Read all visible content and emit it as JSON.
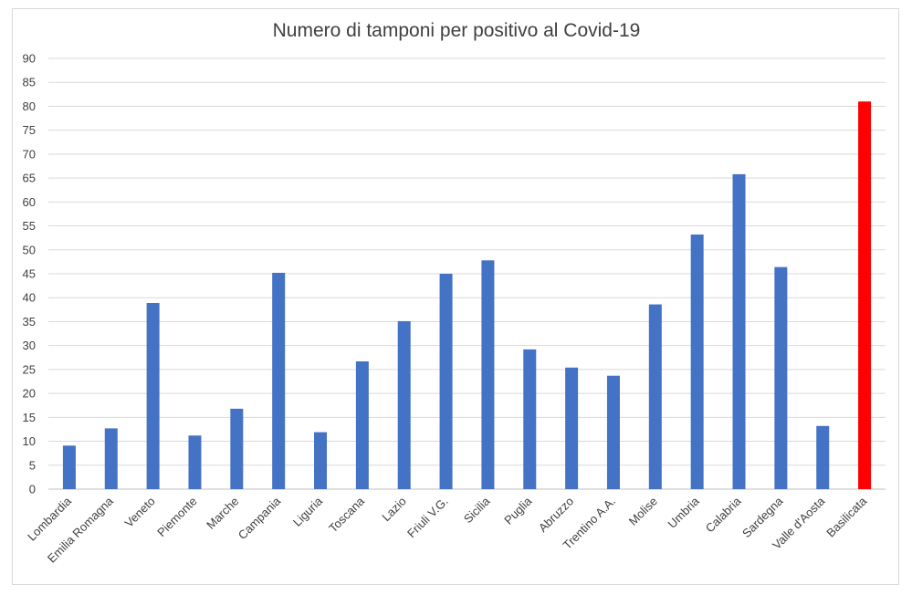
{
  "chart_data": {
    "type": "bar",
    "title": "Numero di tamponi per positivo al Covid-19",
    "xlabel": "",
    "ylabel": "",
    "ylim": [
      0,
      90
    ],
    "ytick_step": 5,
    "grid": true,
    "legend": "none",
    "bar_color": "#4472C4",
    "highlight_color": "#FF0000",
    "highlight_category": "Basilicata",
    "categories": [
      "Lombardia",
      "Emilia Romagna",
      "Veneto",
      "Piemonte",
      "Marche",
      "Campania",
      "Liguria",
      "Toscana",
      "Lazio",
      "Friuli V.G.",
      "Sicilia",
      "Puglia",
      "Abruzzo",
      "Trentino A.A.",
      "Molise",
      "Umbria",
      "Calabria",
      "Sardegna",
      "Valle d'Aosta",
      "Basilicata"
    ],
    "values": [
      9.1,
      12.7,
      38.9,
      11.2,
      16.8,
      45.2,
      11.9,
      26.7,
      35.1,
      45.0,
      47.8,
      29.2,
      25.4,
      23.7,
      38.6,
      53.2,
      65.8,
      46.4,
      13.2,
      81.0
    ]
  }
}
